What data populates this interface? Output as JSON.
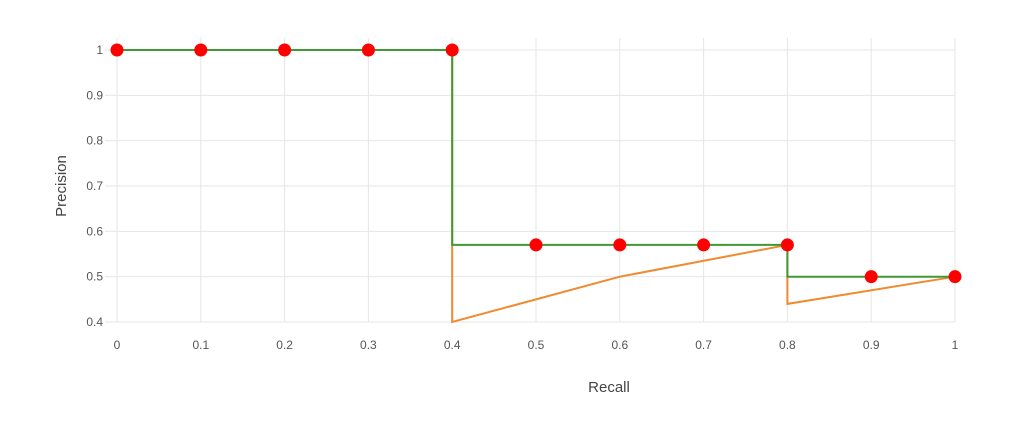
{
  "chart_data": {
    "type": "line",
    "title": "",
    "xlabel": "Recall",
    "ylabel": "Precision",
    "xlim": [
      0,
      1
    ],
    "ylim": [
      0.4,
      1
    ],
    "grid": true,
    "x_ticks": [
      {
        "value": 0,
        "label": "0"
      },
      {
        "value": 0.1,
        "label": "0.1"
      },
      {
        "value": 0.2,
        "label": "0.2"
      },
      {
        "value": 0.3,
        "label": "0.3"
      },
      {
        "value": 0.4,
        "label": "0.4"
      },
      {
        "value": 0.5,
        "label": "0.5"
      },
      {
        "value": 0.6,
        "label": "0.6"
      },
      {
        "value": 0.7,
        "label": "0.7"
      },
      {
        "value": 0.8,
        "label": "0.8"
      },
      {
        "value": 0.9,
        "label": "0.9"
      },
      {
        "value": 1,
        "label": "1"
      }
    ],
    "y_ticks": [
      {
        "value": 0.4,
        "label": "0.4"
      },
      {
        "value": 0.5,
        "label": "0.5"
      },
      {
        "value": 0.6,
        "label": "0.6"
      },
      {
        "value": 0.7,
        "label": "0.7"
      },
      {
        "value": 0.8,
        "label": "0.8"
      },
      {
        "value": 0.9,
        "label": "0.9"
      },
      {
        "value": 1,
        "label": "1"
      }
    ],
    "series": [
      {
        "kind": "line",
        "color": "#f08a30",
        "points": [
          [
            0,
            1
          ],
          [
            0.4,
            1
          ],
          [
            0.4,
            0.4
          ],
          [
            0.6,
            0.5
          ],
          [
            0.8,
            0.57
          ],
          [
            0.8,
            0.44
          ],
          [
            1,
            0.5
          ]
        ]
      },
      {
        "kind": "line",
        "color": "#3f9a35",
        "points": [
          [
            0,
            1
          ],
          [
            0.4,
            1
          ],
          [
            0.4,
            0.57
          ],
          [
            0.8,
            0.57
          ],
          [
            0.8,
            0.5
          ],
          [
            1,
            0.5
          ]
        ]
      },
      {
        "kind": "markers",
        "color": "#ff0000",
        "points": [
          [
            0,
            1
          ],
          [
            0.1,
            1
          ],
          [
            0.2,
            1
          ],
          [
            0.3,
            1
          ],
          [
            0.4,
            1
          ],
          [
            0.5,
            0.57
          ],
          [
            0.6,
            0.57
          ],
          [
            0.7,
            0.57
          ],
          [
            0.8,
            0.57
          ],
          [
            0.9,
            0.5
          ],
          [
            1,
            0.5
          ]
        ]
      }
    ]
  }
}
